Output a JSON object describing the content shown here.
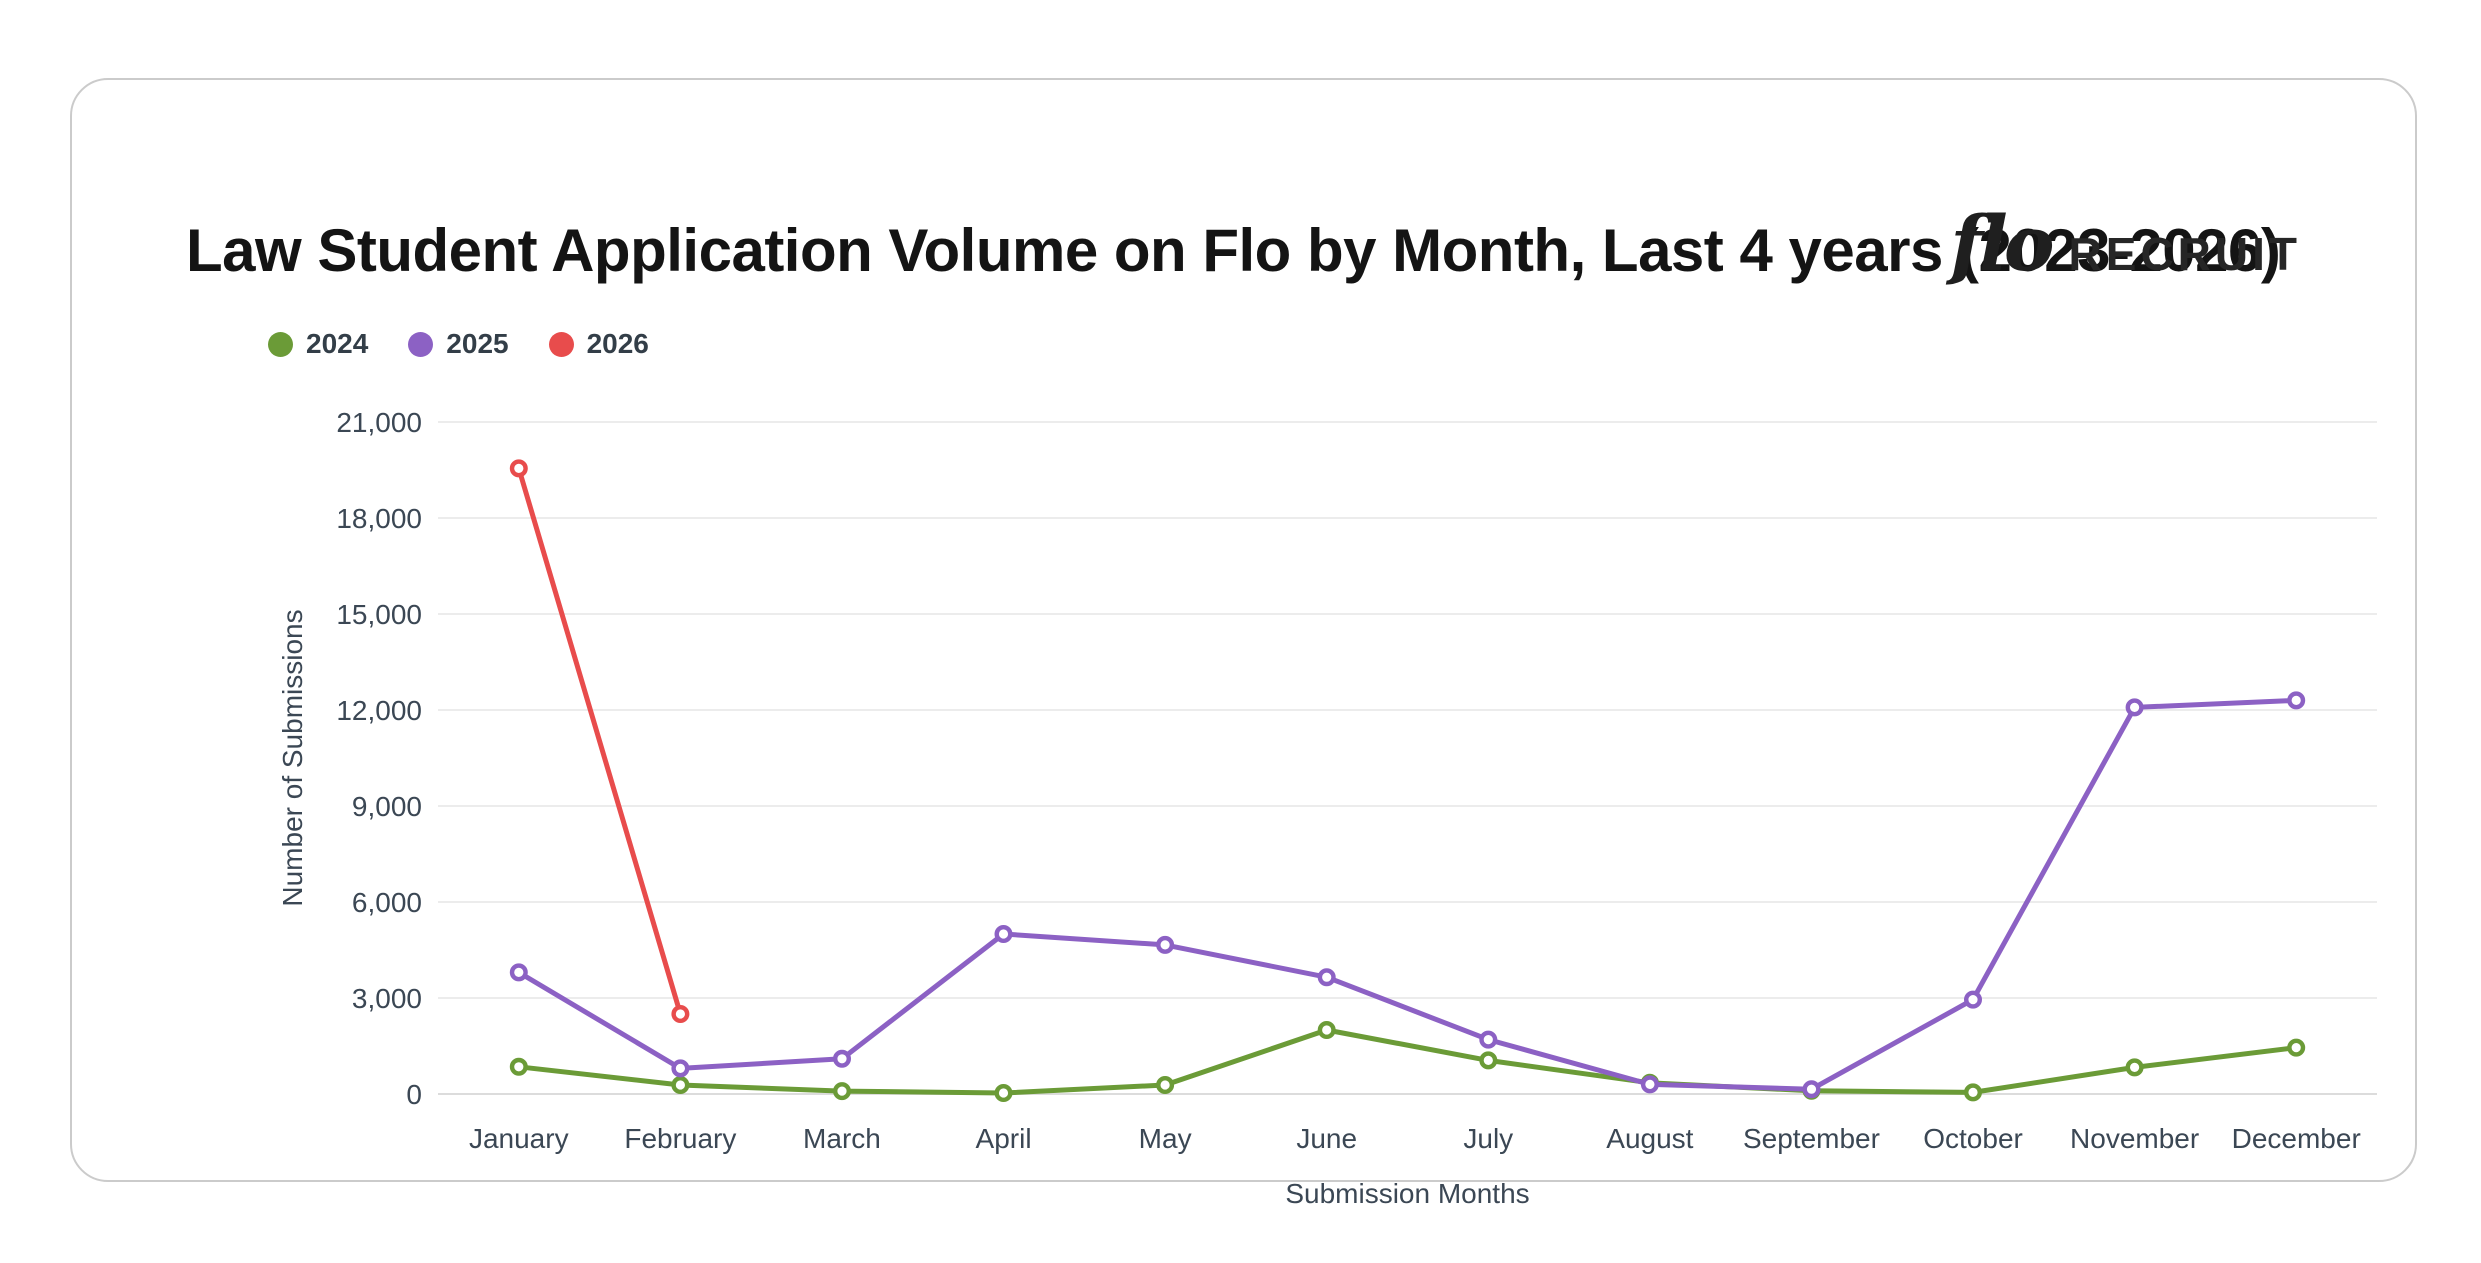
{
  "header": {
    "title": "Law Student Application Volume on Flo by Month, Last 4 years (2023-2026)"
  },
  "logo": {
    "script": "flo",
    "wordmark": "RECRUIT"
  },
  "legend": [
    {
      "label": "2024",
      "color": "#6b9b37"
    },
    {
      "label": "2025",
      "color": "#8c61c4"
    },
    {
      "label": "2026",
      "color": "#e84c4c"
    }
  ],
  "colors": {
    "grid_line": "#ececec",
    "zero_line": "#dcdcdc",
    "tick_text": "#3b4754",
    "title_text": "#141414"
  },
  "chart_data": {
    "type": "line",
    "title": "Law Student Application Volume on Flo by Month, Last 4 years (2023-2026)",
    "xlabel": "Submission Months",
    "ylabel": "Number of Submissions",
    "x": [
      "January",
      "February",
      "March",
      "April",
      "May",
      "June",
      "July",
      "August",
      "September",
      "October",
      "November",
      "December"
    ],
    "ylim": [
      0,
      21000
    ],
    "yticks": [
      0,
      3000,
      6000,
      9000,
      12000,
      15000,
      18000,
      21000
    ],
    "grid": true,
    "legend_position": "top-left",
    "marker_style": "open-circle",
    "series": [
      {
        "name": "2024",
        "color": "#6b9b37",
        "values": [
          850,
          280,
          90,
          30,
          280,
          2000,
          1050,
          350,
          100,
          50,
          830,
          1450
        ]
      },
      {
        "name": "2025",
        "color": "#8c61c4",
        "values": [
          3800,
          800,
          1100,
          5000,
          4660,
          3650,
          1700,
          300,
          150,
          2950,
          12080,
          12300
        ]
      },
      {
        "name": "2026",
        "color": "#e84c4c",
        "values": [
          19550,
          2500,
          null,
          null,
          null,
          null,
          null,
          null,
          null,
          null,
          null,
          null
        ]
      }
    ]
  }
}
